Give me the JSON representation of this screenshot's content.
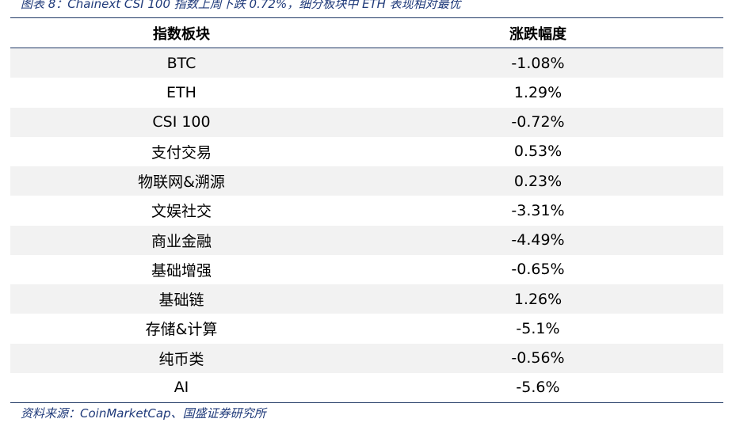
{
  "title": "图表 8：Chainext CSI 100 指数上周下跌 0.72%，细分板块中 ETH 表现相对最优",
  "table": {
    "headers": [
      "指数板块",
      "涨跌幅度"
    ],
    "rows": [
      {
        "sector": "BTC",
        "change": "-1.08%"
      },
      {
        "sector": "ETH",
        "change": "1.29%"
      },
      {
        "sector": "CSI 100",
        "change": "-0.72%"
      },
      {
        "sector": "支付交易",
        "change": "0.53%"
      },
      {
        "sector": "物联网&溯源",
        "change": "0.23%"
      },
      {
        "sector": "文娱社交",
        "change": "-3.31%"
      },
      {
        "sector": "商业金融",
        "change": "-4.49%"
      },
      {
        "sector": "基础增强",
        "change": "-0.65%"
      },
      {
        "sector": "基础链",
        "change": "1.26%"
      },
      {
        "sector": "存储&计算",
        "change": "-5.1%"
      },
      {
        "sector": "纯币类",
        "change": "-0.56%"
      },
      {
        "sector": "AI",
        "change": "-5.6%"
      }
    ]
  },
  "source": "资料来源：CoinMarketCap、国盛证券研究所",
  "colors": {
    "rule": "#1f3864",
    "shade": "#f2f2f2",
    "caption": "#1f3a7a"
  }
}
